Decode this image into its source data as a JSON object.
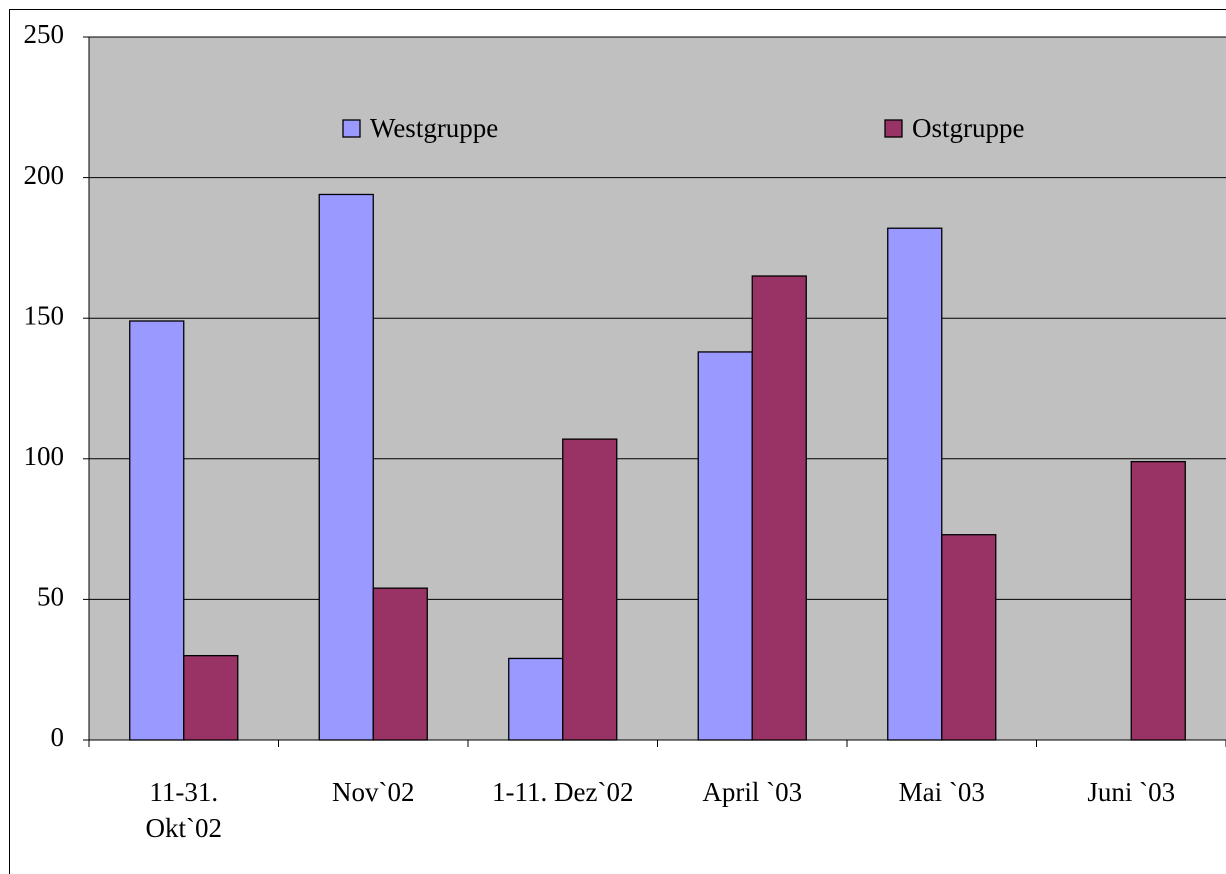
{
  "chart_data": {
    "type": "bar",
    "categories": [
      "11-31.\nOkt`02",
      "Nov`02",
      "1-11. Dez`02",
      "April `03",
      "Mai `03",
      "Juni `03"
    ],
    "series": [
      {
        "name": "Westgruppe",
        "color": "#9999ff",
        "values": [
          149,
          194,
          29,
          138,
          182,
          null
        ]
      },
      {
        "name": "Ostgruppe",
        "color": "#993366",
        "values": [
          30,
          54,
          107,
          165,
          73,
          99
        ]
      }
    ],
    "ylim": [
      0,
      250
    ],
    "yticks": [
      0,
      50,
      100,
      150,
      200,
      250
    ],
    "grid": true,
    "legend": "top"
  }
}
